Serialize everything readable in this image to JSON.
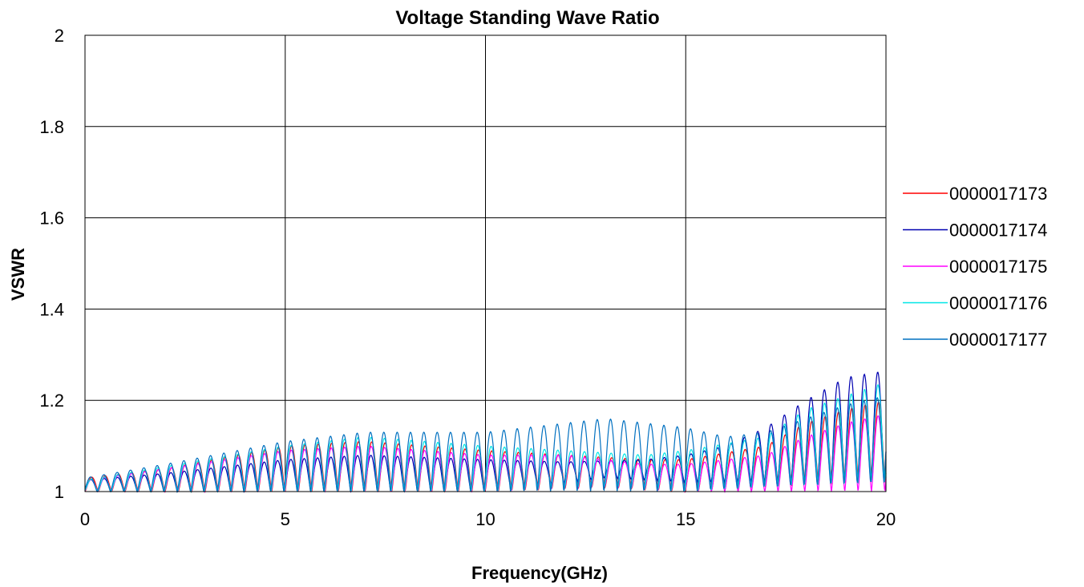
{
  "chart_data": {
    "type": "line",
    "title": "Voltage Standing Wave Ratio",
    "xlabel": "Frequency(GHz)",
    "ylabel": "VSWR",
    "xlim": [
      0,
      20
    ],
    "ylim": [
      1,
      2
    ],
    "x_ticks": [
      "0",
      "5",
      "10",
      "15",
      "20"
    ],
    "y_ticks": [
      "1",
      "1.2",
      "1.4",
      "1.6",
      "1.8",
      "2"
    ],
    "grid": true,
    "legend_position": "right",
    "ripple_period_ghz": 0.333,
    "series": [
      {
        "name": "0000017173",
        "color": "#ff0000",
        "envelope": [
          [
            0,
            1.03
          ],
          [
            2,
            1.05
          ],
          [
            5,
            1.1
          ],
          [
            7,
            1.11
          ],
          [
            10,
            1.09
          ],
          [
            12,
            1.08
          ],
          [
            14,
            1.07
          ],
          [
            15,
            1.07
          ],
          [
            17,
            1.1
          ],
          [
            18,
            1.15
          ],
          [
            19,
            1.18
          ],
          [
            20,
            1.2
          ]
        ],
        "min_floor": [
          [
            0,
            1.0
          ],
          [
            10,
            1.0
          ],
          [
            13,
            1.01
          ],
          [
            15,
            1.0
          ],
          [
            17,
            1.01
          ],
          [
            20,
            1.02
          ]
        ]
      },
      {
        "name": "0000017174",
        "color": "#0000b0",
        "envelope": [
          [
            0,
            1.025
          ],
          [
            2,
            1.04
          ],
          [
            5,
            1.07
          ],
          [
            7,
            1.08
          ],
          [
            10,
            1.07
          ],
          [
            12,
            1.065
          ],
          [
            14,
            1.07
          ],
          [
            15,
            1.08
          ],
          [
            16,
            1.1
          ],
          [
            17,
            1.14
          ],
          [
            18,
            1.2
          ],
          [
            19,
            1.25
          ],
          [
            20,
            1.265
          ]
        ],
        "min_floor": [
          [
            0,
            1.0
          ],
          [
            10,
            1.0
          ],
          [
            13,
            1.03
          ],
          [
            15,
            1.02
          ],
          [
            17,
            1.02
          ],
          [
            20,
            1.02
          ]
        ]
      },
      {
        "name": "0000017175",
        "color": "#ff00ff",
        "envelope": [
          [
            0,
            1.025
          ],
          [
            2,
            1.05
          ],
          [
            5,
            1.09
          ],
          [
            7,
            1.1
          ],
          [
            10,
            1.08
          ],
          [
            12,
            1.08
          ],
          [
            14,
            1.06
          ],
          [
            15,
            1.06
          ],
          [
            17,
            1.08
          ],
          [
            18,
            1.12
          ],
          [
            19,
            1.15
          ],
          [
            20,
            1.17
          ]
        ],
        "min_floor": [
          [
            0,
            1.0
          ],
          [
            10,
            1.0
          ],
          [
            13,
            1.01
          ],
          [
            15,
            1.0
          ],
          [
            17,
            1.0
          ],
          [
            20,
            1.0
          ]
        ]
      },
      {
        "name": "0000017176",
        "color": "#00e6e6",
        "envelope": [
          [
            0,
            1.025
          ],
          [
            2,
            1.055
          ],
          [
            5,
            1.1
          ],
          [
            7,
            1.12
          ],
          [
            10,
            1.1
          ],
          [
            12,
            1.09
          ],
          [
            14,
            1.08
          ],
          [
            15,
            1.09
          ],
          [
            17,
            1.12
          ],
          [
            18,
            1.18
          ],
          [
            19,
            1.21
          ],
          [
            20,
            1.24
          ]
        ],
        "min_floor": [
          [
            0,
            1.0
          ],
          [
            10,
            1.0
          ],
          [
            13,
            1.01
          ],
          [
            15,
            1.0
          ],
          [
            17,
            1.01
          ],
          [
            20,
            1.02
          ]
        ]
      },
      {
        "name": "0000017177",
        "color": "#0070c0",
        "envelope": [
          [
            0,
            1.03
          ],
          [
            2,
            1.06
          ],
          [
            5,
            1.11
          ],
          [
            7,
            1.13
          ],
          [
            10,
            1.13
          ],
          [
            12,
            1.15
          ],
          [
            13,
            1.16
          ],
          [
            14,
            1.15
          ],
          [
            15,
            1.14
          ],
          [
            16,
            1.12
          ],
          [
            17,
            1.13
          ],
          [
            18,
            1.16
          ],
          [
            19,
            1.19
          ],
          [
            20,
            1.21
          ]
        ],
        "min_floor": [
          [
            0,
            1.0
          ],
          [
            10,
            1.0
          ],
          [
            13,
            1.0
          ],
          [
            15,
            1.0
          ],
          [
            17,
            1.01
          ],
          [
            20,
            1.02
          ]
        ]
      }
    ]
  }
}
